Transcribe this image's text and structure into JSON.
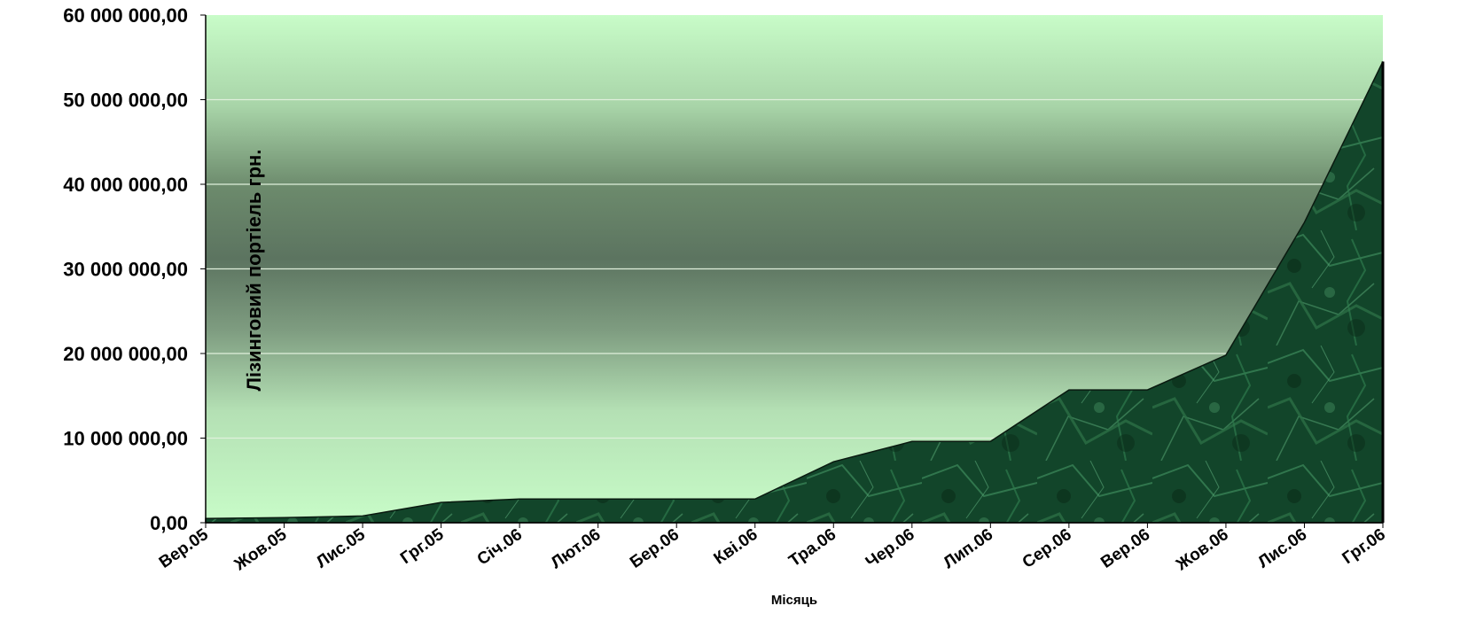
{
  "chart_data": {
    "type": "area",
    "title": "",
    "xlabel": "Місяць",
    "ylabel": "Лізинговий портіель грн.",
    "categories": [
      "Вер.05",
      "Жов.05",
      "Лис.05",
      "Грг.05",
      "Січ.06",
      "Лют.06",
      "Бер.06",
      "Кві.06",
      "Тра.06",
      "Чер.06",
      "Лип.06",
      "Сер.06",
      "Вер.06",
      "Жов.06",
      "Лис.06",
      "Грг.06"
    ],
    "values": [
      500000,
      600000,
      800000,
      2400000,
      2800000,
      2800000,
      2800000,
      2800000,
      7200000,
      9600000,
      9600000,
      15700000,
      15700000,
      19800000,
      35500000,
      54500000
    ],
    "y_tick_labels": [
      "0,00",
      "10 000 000,00",
      "20 000 000,00",
      "30 000 000,00",
      "40 000 000,00",
      "50 000 000,00",
      "60 000 000,00"
    ],
    "ylim": [
      0,
      60000000
    ],
    "grid": true,
    "legend": "none",
    "colors": {
      "area_dark": "#0d3a1c",
      "area_light": "#3d8a5c",
      "plot_light": "#c8fcc8",
      "plot_dark": "#5c7460",
      "grid": "#e0f0dc"
    }
  }
}
